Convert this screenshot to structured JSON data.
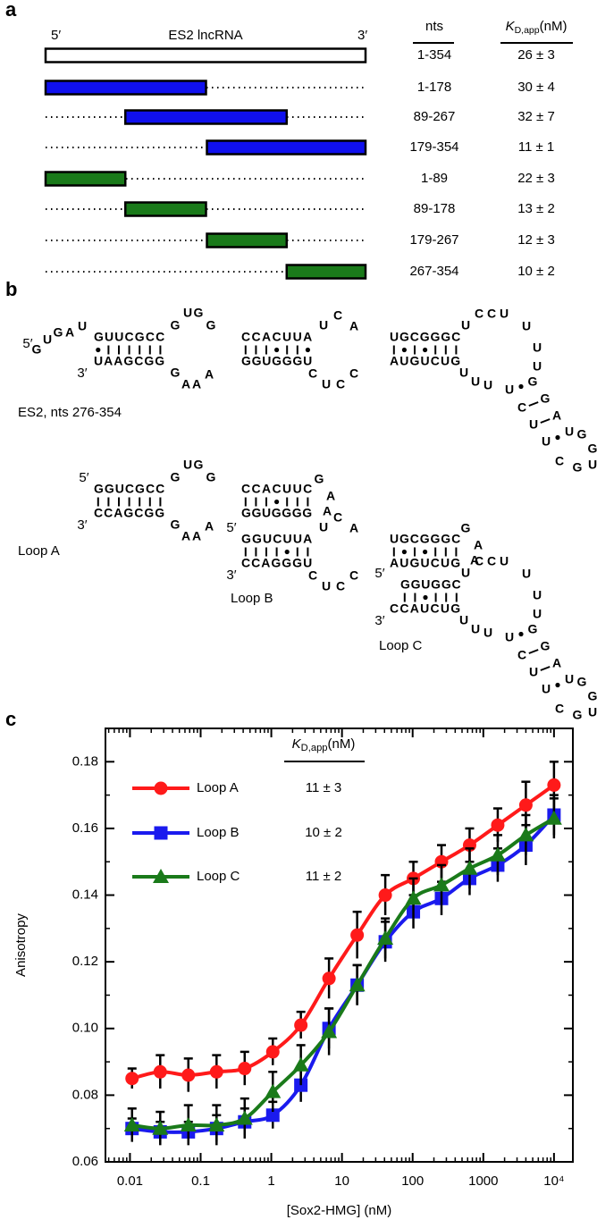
{
  "panel_a": {
    "label": "a",
    "five_prime": "5′",
    "name": "ES2 lncRNA",
    "three_prime": "3′",
    "nts_header": "nts",
    "kd_header": {
      "symbol": "K",
      "subscript": "D,app",
      "unit": "(nM)"
    },
    "rows": [
      {
        "nts": "1-354",
        "start": 1,
        "end": 354,
        "kd": "26 ± 3",
        "color": "#ffffff"
      },
      {
        "nts": "1-178",
        "start": 1,
        "end": 178,
        "kd": "30 ± 4",
        "color": "#1010ee"
      },
      {
        "nts": "89-267",
        "start": 89,
        "end": 267,
        "kd": "32 ± 7",
        "color": "#1010ee"
      },
      {
        "nts": "179-354",
        "start": 179,
        "end": 354,
        "kd": "11 ± 1",
        "color": "#1010ee"
      },
      {
        "nts": "1-89",
        "start": 1,
        "end": 89,
        "kd": "22 ± 3",
        "color": "#1a7a1a"
      },
      {
        "nts": "89-178",
        "start": 89,
        "end": 178,
        "kd": "13 ± 2",
        "color": "#1a7a1a"
      },
      {
        "nts": "179-267",
        "start": 179,
        "end": 267,
        "kd": "12 ± 3",
        "color": "#1a7a1a"
      },
      {
        "nts": "267-354",
        "start": 267,
        "end": 354,
        "kd": "10 ± 2",
        "color": "#1a7a1a"
      }
    ]
  },
  "panel_b": {
    "label": "b",
    "structures": [
      {
        "label": "ES2, nts 276-354",
        "color": "#000000",
        "fragments": [
          "5′",
          "G",
          "U",
          "G",
          "A",
          "U",
          "GUUCGCC",
          "UAAGCGG",
          "3′",
          "G",
          "U",
          "G",
          "G",
          "G",
          "A",
          "A",
          "A",
          "CCACUUA",
          "GGUGGGU",
          "U",
          "C",
          "A",
          "C",
          "U",
          "C",
          "C",
          "UGCGGGC",
          "AUGUCUG",
          "U",
          "C",
          "C",
          "U",
          "U",
          "U",
          "U",
          "U",
          "U",
          "U",
          "U",
          "C",
          "U",
          "U",
          "C",
          "G",
          "G",
          "A",
          "U",
          "G",
          "G",
          "U",
          "G"
        ]
      },
      {
        "label": "Loop A",
        "color": "#ff1a1a",
        "fragments": [
          "5′",
          "GGUCGCC",
          "CCAGCGG",
          "3′",
          "G",
          "U",
          "G",
          "G",
          "G",
          "A",
          "A",
          "A",
          "CCACUUC",
          "GGUGGGG",
          "G",
          "A",
          "A"
        ]
      },
      {
        "label": "Loop B",
        "color": "#1a1aee",
        "fragments": [
          "5′",
          "GGUCUUA",
          "CCAGGGU",
          "3′",
          "U",
          "C",
          "A",
          "C",
          "U",
          "C",
          "C",
          "UGCGGGC",
          "AUGUCUG",
          "G",
          "A",
          "A"
        ]
      },
      {
        "label": "Loop C",
        "color": "#1a8a1a",
        "fragments": [
          "5′",
          "GGUGGC",
          "CCAUCUG",
          "3′",
          "U",
          "C",
          "C",
          "U",
          "U",
          "U",
          "U",
          "U",
          "U",
          "U",
          "U",
          "C",
          "U",
          "U",
          "C",
          "G",
          "G",
          "A",
          "U",
          "G",
          "G",
          "U",
          "G"
        ]
      }
    ]
  },
  "chart_data": {
    "type": "line",
    "panel_label": "c",
    "x_label": "[Sox2-HMG] (nM)",
    "y_label": "Anisotropy",
    "x": [
      0.0107,
      0.0268,
      0.067,
      0.168,
      0.42,
      1.05,
      2.62,
      6.55,
      16.4,
      41,
      102.4,
      256,
      640,
      1600,
      4000,
      10000
    ],
    "xscale": "log",
    "xlim": [
      0.0045,
      18500
    ],
    "xticks": [
      0.01,
      0.1,
      1,
      10,
      100,
      1000,
      {
        "value": 10000,
        "label": "10⁴"
      }
    ],
    "ylim": [
      0.06,
      0.19
    ],
    "yticks": [
      0.06,
      0.08,
      {
        "value": 0.1,
        "label": "0.10"
      },
      0.12,
      0.14,
      0.16,
      0.18
    ],
    "kd_header": {
      "symbol": "K",
      "subscript": "D,app",
      "unit": "(nM)"
    },
    "series": [
      {
        "name": "Loop A",
        "color": "#ff1a1a",
        "marker": "circle",
        "kd": "11 ± 3",
        "values": [
          0.085,
          0.087,
          0.086,
          0.087,
          0.088,
          0.093,
          0.101,
          0.115,
          0.128,
          0.14,
          0.145,
          0.15,
          0.155,
          0.161,
          0.167,
          0.173
        ],
        "errors": [
          0.003,
          0.005,
          0.005,
          0.005,
          0.005,
          0.004,
          0.004,
          0.006,
          0.007,
          0.006,
          0.005,
          0.005,
          0.005,
          0.005,
          0.007,
          0.007
        ]
      },
      {
        "name": "Loop B",
        "color": "#1a1aee",
        "marker": "square",
        "kd": "10 ± 2",
        "values": [
          0.07,
          0.069,
          0.069,
          0.07,
          0.072,
          0.074,
          0.083,
          0.1,
          0.113,
          0.126,
          0.135,
          0.139,
          0.145,
          0.149,
          0.155,
          0.164
        ],
        "errors": [
          0.003,
          0.003,
          0.003,
          0.004,
          0.004,
          0.004,
          0.005,
          0.006,
          0.006,
          0.006,
          0.005,
          0.005,
          0.005,
          0.005,
          0.006,
          0.006
        ]
      },
      {
        "name": "Loop C",
        "color": "#1a7a1a",
        "marker": "triangle",
        "kd": "11 ± 2",
        "values": [
          0.071,
          0.07,
          0.071,
          0.071,
          0.073,
          0.081,
          0.089,
          0.099,
          0.113,
          0.127,
          0.139,
          0.143,
          0.148,
          0.152,
          0.158,
          0.163
        ],
        "errors": [
          0.005,
          0.005,
          0.006,
          0.006,
          0.006,
          0.006,
          0.006,
          0.007,
          0.006,
          0.006,
          0.006,
          0.006,
          0.006,
          0.006,
          0.006,
          0.006
        ]
      }
    ]
  }
}
